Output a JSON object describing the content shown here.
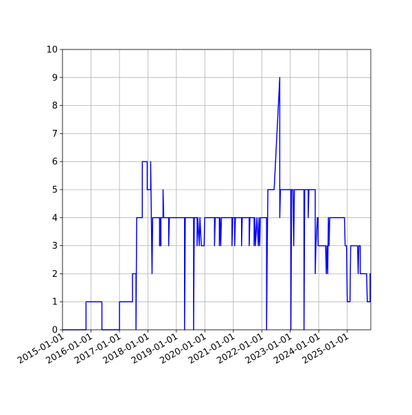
{
  "chart_data": {
    "type": "line",
    "color": "#0000ff",
    "grid": true,
    "x": [
      "2015-01-01",
      "2015-10-30",
      "2015-10-30",
      "2016-05-21",
      "2016-05-21",
      "2017-01-01",
      "2017-01-01",
      "2017-06-17",
      "2017-06-17",
      "2017-08-01",
      "2017-08-01",
      "2017-08-10",
      "2017-10-21",
      "2017-10-21",
      "2017-12-23",
      "2017-12-23",
      "2018-02-05",
      "2018-02-05",
      "2018-02-23",
      "2018-03-03",
      "2018-05-30",
      "2018-05-30",
      "2018-06-08",
      "2018-06-08",
      "2018-06-17",
      "2018-06-17",
      "2018-07-14",
      "2018-07-14",
      "2018-07-23",
      "2018-09-24",
      "2018-09-24",
      "2018-10-03",
      "2019-04-16",
      "2019-04-16",
      "2019-04-25",
      "2019-08-10",
      "2019-08-10",
      "2019-08-19",
      "2019-09-24",
      "2019-09-24",
      "2019-10-03",
      "2019-10-21",
      "2019-10-30",
      "2019-11-17",
      "2019-12-23",
      "2019-12-31",
      "2020-05-04",
      "2020-05-04",
      "2020-05-13",
      "2020-07-05",
      "2020-07-05",
      "2020-07-14",
      "2020-07-23",
      "2020-08-01",
      "2020-12-14",
      "2020-12-14",
      "2020-12-23",
      "2021-01-18",
      "2021-01-18",
      "2021-01-27",
      "2021-04-16",
      "2021-04-16",
      "2021-04-25",
      "2021-07-23",
      "2021-07-23",
      "2021-08-01",
      "2021-09-24",
      "2021-09-24",
      "2021-10-03",
      "2021-10-12",
      "2021-10-30",
      "2021-11-17",
      "2021-11-26",
      "2021-12-05",
      "2021-12-14",
      "2022-03-03",
      "2022-03-03",
      "2022-03-12",
      "2022-03-20",
      "2022-06-08",
      "2022-08-19",
      "2022-08-19",
      "2022-08-28",
      "2023-01-09",
      "2023-01-09",
      "2023-01-18",
      "2023-02-05",
      "2023-02-14",
      "2023-02-23",
      "2023-06-26",
      "2023-06-26",
      "2023-07-05",
      "2023-08-19",
      "2023-08-19",
      "2023-08-28",
      "2023-11-17",
      "2023-11-17",
      "2023-11-26",
      "2023-12-14",
      "2023-12-23",
      "2023-12-23",
      "2024-03-29",
      "2024-04-07",
      "2024-04-16",
      "2024-04-25",
      "2024-05-04",
      "2024-05-13",
      "2024-05-21",
      "2024-11-26",
      "2024-12-05",
      "2024-12-23",
      "2025-01-01",
      "2025-02-05",
      "2025-02-14",
      "2025-05-13",
      "2025-05-21",
      "2025-05-30",
      "2025-06-17",
      "2025-06-17",
      "2025-09-06",
      "2025-09-15",
      "2025-10-21",
      "2025-10-21",
      "2025-10-30"
    ],
    "values": [
      0,
      0,
      1,
      1,
      0,
      0,
      1,
      1,
      2,
      2,
      0,
      4,
      4,
      6,
      6,
      5,
      5,
      6,
      2,
      4,
      4,
      3,
      4,
      3,
      3,
      4,
      4,
      5,
      4,
      4,
      3,
      4,
      4,
      0,
      4,
      4,
      0,
      4,
      4,
      3,
      4,
      3,
      4,
      3,
      3,
      4,
      4,
      3,
      4,
      4,
      3,
      4,
      3,
      4,
      4,
      3,
      4,
      4,
      3,
      4,
      4,
      3,
      4,
      4,
      3,
      4,
      4,
      3,
      4,
      3,
      4,
      3,
      4,
      3,
      4,
      4,
      0,
      3,
      5,
      5,
      9,
      4,
      5,
      5,
      0,
      5,
      5,
      3,
      5,
      5,
      0,
      5,
      5,
      4,
      5,
      5,
      2,
      3,
      4,
      4,
      3,
      3,
      2,
      3,
      2,
      4,
      3,
      4,
      4,
      3,
      3,
      1,
      1,
      3,
      3,
      2,
      3,
      3,
      2,
      2,
      1,
      1,
      2,
      2
    ],
    "xlim": [
      "2015-01-01",
      "2025-10-30"
    ],
    "xticks": [
      "2015-01-01",
      "2016-01-01",
      "2017-01-01",
      "2018-01-01",
      "2019-01-01",
      "2020-01-01",
      "2021-01-01",
      "2022-01-01",
      "2023-01-01",
      "2024-01-01",
      "2025-01-01"
    ],
    "ylim": [
      0,
      10
    ],
    "yticks": [
      0,
      1,
      2,
      3,
      4,
      5,
      6,
      7,
      8,
      9,
      10
    ]
  }
}
